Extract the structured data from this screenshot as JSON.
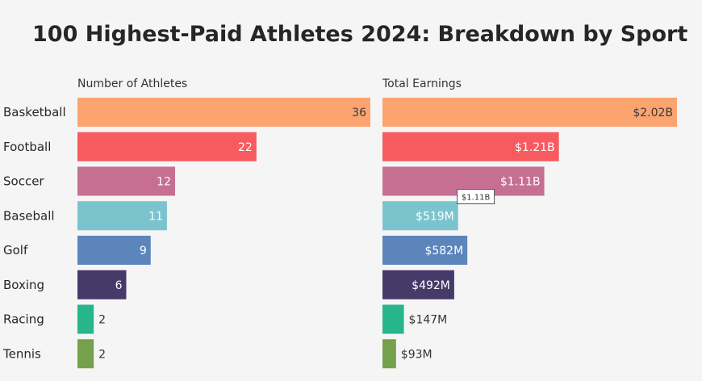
{
  "chart_data": {
    "type": "bar",
    "title": "100 Highest-Paid Athletes 2024: Breakdown by Sport",
    "categories": [
      "Basketball",
      "Football",
      "Soccer",
      "Baseball",
      "Golf",
      "Boxing",
      "Racing",
      "Tennis"
    ],
    "colors": [
      "#fba46f",
      "#f85b5f",
      "#c66f93",
      "#7bc4ce",
      "#5c85bc",
      "#463a69",
      "#27b58b",
      "#75a14c"
    ],
    "series": [
      {
        "name": "Number of Athletes",
        "values": [
          36,
          22,
          12,
          11,
          9,
          6,
          2,
          2
        ],
        "labels": [
          "36",
          "22",
          "12",
          "11",
          "9",
          "6",
          "2",
          "2"
        ]
      },
      {
        "name": "Total Earnings",
        "values": [
          2020,
          1210,
          1110,
          519,
          582,
          492,
          147,
          93
        ],
        "unit": "$M",
        "labels": [
          "$2.02B",
          "$1.21B",
          "$1.11B",
          "$519M",
          "$582M",
          "$492M",
          "$147M",
          "$93M"
        ]
      }
    ],
    "tooltip": {
      "category": "Soccer",
      "series": "Total Earnings",
      "text": "$1.11B"
    }
  }
}
